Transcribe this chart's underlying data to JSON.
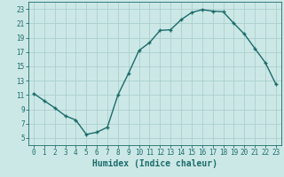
{
  "x": [
    0,
    1,
    2,
    3,
    4,
    5,
    6,
    7,
    8,
    9,
    10,
    11,
    12,
    13,
    14,
    15,
    16,
    17,
    18,
    19,
    20,
    21,
    22,
    23
  ],
  "y": [
    11.2,
    10.2,
    9.2,
    8.1,
    7.5,
    5.5,
    5.8,
    6.5,
    11.0,
    14.0,
    17.2,
    18.3,
    20.0,
    20.1,
    21.5,
    22.5,
    22.9,
    22.7,
    22.6,
    21.0,
    19.5,
    17.5,
    15.5,
    12.5
  ],
  "line_color": "#1a6b6b",
  "marker": "+",
  "bg_color": "#cce8e6",
  "grid_color": "#aad0ce",
  "xlabel": "Humidex (Indice chaleur)",
  "xlim": [
    -0.5,
    23.5
  ],
  "ylim": [
    4,
    24
  ],
  "yticks": [
    5,
    7,
    9,
    11,
    13,
    15,
    17,
    19,
    21,
    23
  ],
  "xticks": [
    0,
    1,
    2,
    3,
    4,
    5,
    6,
    7,
    8,
    9,
    10,
    11,
    12,
    13,
    14,
    15,
    16,
    17,
    18,
    19,
    20,
    21,
    22,
    23
  ],
  "tick_fontsize": 5.5,
  "label_fontsize": 7.0,
  "line_width": 1.0,
  "marker_size": 3.5
}
